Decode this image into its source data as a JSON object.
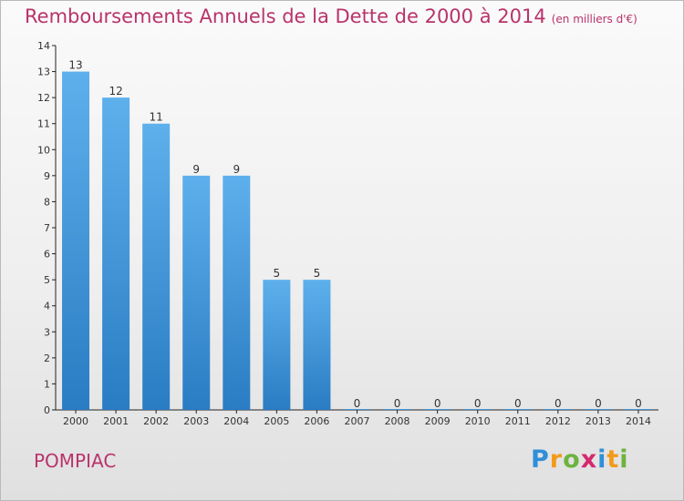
{
  "header": {
    "title": "Remboursements Annuels de la Dette de 2000 à 2014",
    "unit": "(en milliers d'€)"
  },
  "footer": {
    "city": "POMPIAC",
    "logo": {
      "p": "P",
      "r": "r",
      "o": "o",
      "x": "x",
      "i1": "i",
      "t": "t",
      "i2": "i"
    }
  },
  "colors": {
    "title": "#b9336a",
    "bar_top": "#5eb0ec",
    "bar_bottom": "#2a7cc3"
  },
  "chart_data": {
    "type": "bar",
    "categories": [
      "2000",
      "2001",
      "2002",
      "2003",
      "2004",
      "2005",
      "2006",
      "2007",
      "2008",
      "2009",
      "2010",
      "2011",
      "2012",
      "2013",
      "2014"
    ],
    "values": [
      13,
      12,
      11,
      9,
      9,
      5,
      5,
      0,
      0,
      0,
      0,
      0,
      0,
      0,
      0
    ],
    "title": "Remboursements Annuels de la Dette de 2000 à 2014",
    "xlabel": "",
    "ylabel": "",
    "ylim": [
      0,
      14
    ],
    "yticks": [
      0,
      1,
      2,
      3,
      4,
      5,
      6,
      7,
      8,
      9,
      10,
      11,
      12,
      13,
      14
    ],
    "grid": false,
    "data_labels": true
  }
}
